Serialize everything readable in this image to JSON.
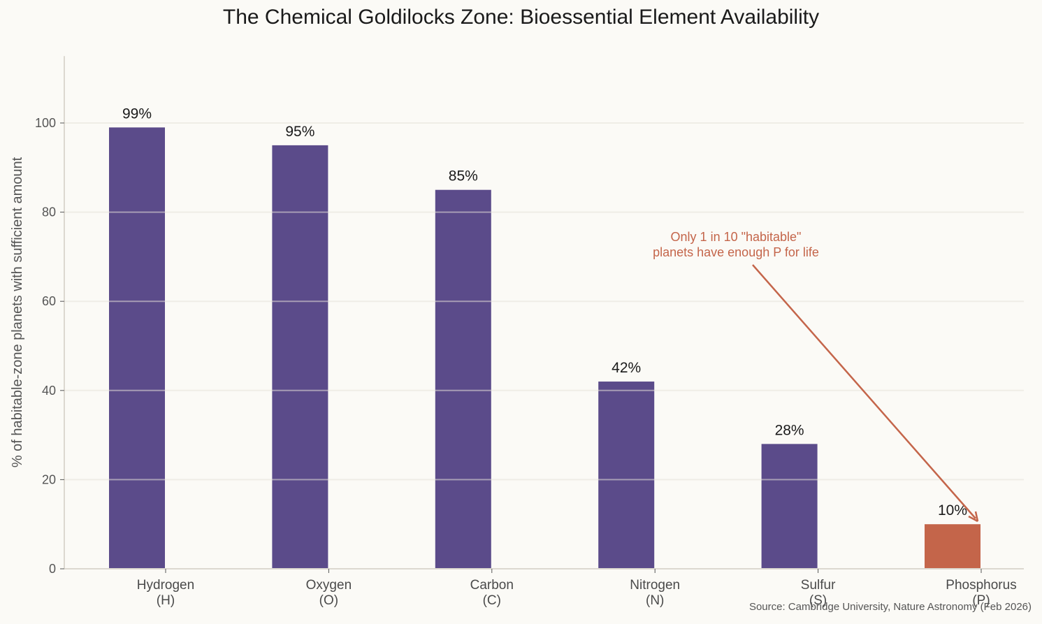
{
  "chart_data": {
    "type": "bar",
    "title": "The Chemical Goldilocks Zone: Bioessential Element Availability",
    "xlabel": "",
    "ylabel": "% of habitable-zone planets with sufficient amount",
    "ylim": [
      0,
      115
    ],
    "yticks": [
      0,
      20,
      40,
      60,
      80,
      100
    ],
    "grid": true,
    "categories": [
      "Hydrogen\n(H)",
      "Oxygen\n(O)",
      "Carbon\n(C)",
      "Nitrogen\n(N)",
      "Sulfur\n(S)",
      "Phosphorus\n(P)"
    ],
    "category_names": [
      "Hydrogen",
      "Oxygen",
      "Carbon",
      "Nitrogen",
      "Sulfur",
      "Phosphorus"
    ],
    "category_symbols": [
      "(H)",
      "(O)",
      "(C)",
      "(N)",
      "(S)",
      "(P)"
    ],
    "values": [
      99,
      95,
      85,
      42,
      28,
      10
    ],
    "value_labels": [
      "99%",
      "95%",
      "85%",
      "42%",
      "28%",
      "10%"
    ],
    "bar_colors": [
      "#5b4b8a",
      "#5b4b8a",
      "#5b4b8a",
      "#5b4b8a",
      "#5b4b8a",
      "#c4654a"
    ],
    "annotations": [
      {
        "text_lines": [
          "Only 1 in 10 \"habitable\"",
          "planets have enough P for life"
        ],
        "target": "Phosphorus",
        "color": "#c4654a"
      }
    ],
    "source": "Source: Cambridge University, Nature Astronomy (Feb 2026)"
  },
  "colors": {
    "background": "#fbfaf6",
    "primary_bar": "#5b4b8a",
    "highlight_bar": "#c4654a",
    "grid": "#ece9e2",
    "axis": "#dcd8d0"
  }
}
